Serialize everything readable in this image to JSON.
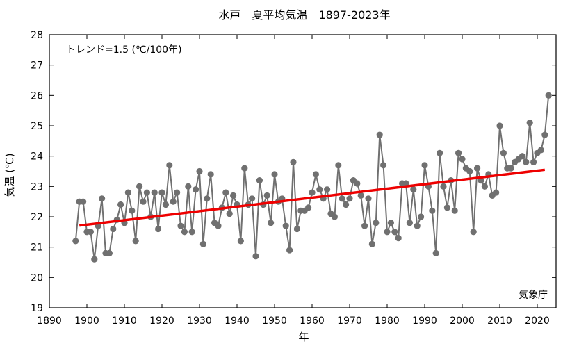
{
  "chart_data": {
    "type": "line",
    "title": "水戸　夏平均気温　1897-2023年",
    "xlabel": "年",
    "ylabel": "気温 (℃)",
    "xlim": [
      1890,
      2025
    ],
    "ylim": [
      19,
      28
    ],
    "x_ticks": [
      1890,
      1900,
      1910,
      1920,
      1930,
      1940,
      1950,
      1960,
      1970,
      1980,
      1990,
      2000,
      2010,
      2020
    ],
    "y_ticks": [
      19,
      20,
      21,
      22,
      23,
      24,
      25,
      26,
      27,
      28
    ],
    "grid": false,
    "colors": {
      "series": "#707070",
      "trend": "#ee0000"
    },
    "series": [
      {
        "x": [
          1897,
          1898,
          1899,
          1900,
          1901,
          1902,
          1903,
          1904,
          1905,
          1906,
          1907,
          1908,
          1909,
          1910,
          1911,
          1912,
          1913,
          1914,
          1915,
          1916,
          1917,
          1918,
          1919,
          1920,
          1921,
          1922,
          1923,
          1924,
          1925,
          1926,
          1927,
          1928,
          1929,
          1930,
          1931,
          1932,
          1933,
          1934,
          1935,
          1936,
          1937,
          1938,
          1939,
          1940,
          1941,
          1942,
          1943,
          1944,
          1945,
          1946,
          1947,
          1948,
          1949,
          1950,
          1951,
          1952,
          1953,
          1954,
          1955,
          1956,
          1957,
          1958,
          1959,
          1960,
          1961,
          1962,
          1963,
          1964,
          1965,
          1966,
          1967,
          1968,
          1969,
          1970,
          1971,
          1972,
          1973,
          1974,
          1975,
          1976,
          1977,
          1978,
          1979,
          1980,
          1981,
          1982,
          1983,
          1984,
          1985,
          1986,
          1987,
          1988,
          1989,
          1990,
          1991,
          1992,
          1993,
          1994,
          1995,
          1996,
          1997,
          1998,
          1999,
          2000,
          2001,
          2002,
          2003,
          2004,
          2005,
          2006,
          2007,
          2008,
          2009,
          2010,
          2011,
          2012,
          2013,
          2014,
          2015,
          2016,
          2017,
          2018,
          2019,
          2020,
          2021,
          2022,
          2023
        ],
        "y": [
          21.2,
          22.5,
          22.5,
          21.5,
          21.5,
          20.6,
          21.7,
          22.6,
          20.8,
          20.8,
          21.6,
          21.9,
          22.4,
          21.8,
          22.8,
          22.2,
          21.2,
          23.0,
          22.5,
          22.8,
          22.0,
          22.8,
          21.6,
          22.8,
          22.4,
          23.7,
          22.5,
          22.8,
          21.7,
          21.5,
          23.0,
          21.5,
          22.9,
          23.5,
          21.1,
          22.6,
          23.4,
          21.8,
          21.7,
          22.3,
          22.8,
          22.1,
          22.7,
          22.4,
          21.2,
          23.6,
          22.4,
          22.6,
          20.7,
          23.2,
          22.4,
          22.7,
          21.8,
          23.4,
          22.5,
          22.6,
          21.7,
          20.9,
          23.8,
          21.6,
          22.2,
          22.2,
          22.3,
          22.8,
          23.4,
          22.9,
          22.6,
          22.9,
          22.1,
          22.0,
          23.7,
          22.6,
          22.4,
          22.6,
          23.2,
          23.1,
          22.7,
          21.7,
          22.6,
          21.1,
          21.8,
          24.7,
          23.7,
          21.5,
          21.8,
          21.5,
          21.3,
          23.1,
          23.1,
          21.8,
          22.9,
          21.7,
          22.0,
          23.7,
          23.0,
          22.2,
          20.8,
          24.1,
          23.0,
          22.3,
          23.2,
          22.2,
          24.1,
          23.9,
          23.6,
          23.5,
          21.5,
          23.6,
          23.2,
          23.0,
          23.4,
          22.7,
          22.8,
          25.0,
          24.1,
          23.6,
          23.6,
          23.8,
          23.9,
          24.0,
          23.8,
          25.1,
          23.8,
          24.1,
          24.2,
          24.7,
          26.0
        ]
      }
    ],
    "trend": {
      "label": "トレンド=1.5 (℃/100年)",
      "x": [
        1898,
        2022
      ],
      "y": [
        21.71,
        23.55
      ]
    },
    "source": "気象庁"
  }
}
